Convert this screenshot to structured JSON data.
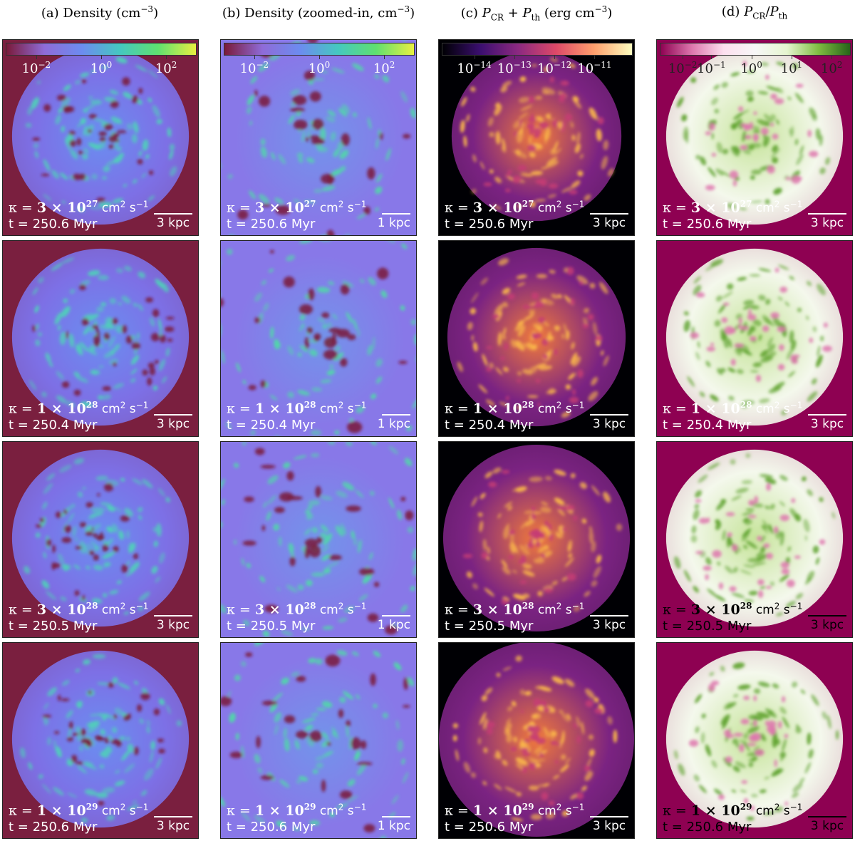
{
  "columns": [
    {
      "id": "a",
      "title_main": "(a) Density (cm",
      "title_sup": "−3",
      "title_end": ")"
    },
    {
      "id": "b",
      "title_main": "(b) Density (zoomed-in, cm",
      "title_sup": "−3",
      "title_end": ")"
    },
    {
      "id": "c",
      "title_pre": "(c) ",
      "title_p1": "P",
      "title_s1": "CR",
      "title_plus": " + ",
      "title_p2": "P",
      "title_s2": "th",
      "title_end": " (erg cm",
      "title_sup": "−3",
      "title_close": ")"
    },
    {
      "id": "d",
      "title_pre": "(d) ",
      "title_p1": "P",
      "title_s1": "CR",
      "title_slash": "/",
      "title_p2": "P",
      "title_s2": "th"
    }
  ],
  "colorbars": {
    "a": {
      "ticks": [
        {
          "base": "10",
          "exp": "−2"
        },
        {
          "base": "10",
          "exp": "0"
        },
        {
          "base": "10",
          "exp": "2"
        }
      ],
      "colors": [
        "#7a1a3a",
        "#8f6bd8",
        "#6c8cf0",
        "#45c8c0",
        "#5fe070",
        "#e8f040"
      ]
    },
    "b": {
      "ticks": [
        {
          "base": "10",
          "exp": "−2"
        },
        {
          "base": "10",
          "exp": "0"
        },
        {
          "base": "10",
          "exp": "2"
        }
      ],
      "colors": [
        "#7a1a3a",
        "#8f6bd8",
        "#6c8cf0",
        "#45c8c0",
        "#5fe070",
        "#e8f040"
      ]
    },
    "c": {
      "ticks": [
        {
          "base": "10",
          "exp": "−14"
        },
        {
          "base": "10",
          "exp": "−13"
        },
        {
          "base": "10",
          "exp": "−12"
        },
        {
          "base": "10",
          "exp": "−11"
        }
      ],
      "colors": [
        "#000004",
        "#3b0f70",
        "#8c2981",
        "#de4968",
        "#fe9f6d",
        "#fcfdbf"
      ]
    },
    "d": {
      "ticks": [
        {
          "base": "10",
          "exp": "−2"
        },
        {
          "base": "10",
          "exp": "−1"
        },
        {
          "base": "10",
          "exp": "0"
        },
        {
          "base": "10",
          "exp": "1"
        },
        {
          "base": "10",
          "exp": "2"
        }
      ],
      "colors": [
        "#8e0152",
        "#de77ae",
        "#fde0ef",
        "#f7f7f7",
        "#e6f5d0",
        "#7fbc41",
        "#276419"
      ]
    }
  },
  "rows": [
    {
      "kappa_mant": "3",
      "kappa_exp": "27",
      "time": "t = 250.6 Myr"
    },
    {
      "kappa_mant": "1",
      "kappa_exp": "28",
      "time": "t = 250.4 Myr"
    },
    {
      "kappa_mant": "3",
      "kappa_exp": "28",
      "time": "t = 250.5 Myr"
    },
    {
      "kappa_mant": "1",
      "kappa_exp": "29",
      "time": "t = 250.6 Myr"
    }
  ],
  "kappa": {
    "symbol": "κ = ",
    "times": " × ",
    "base": "10",
    "unit": "cm",
    "unit_sup1": "2",
    "unit_s": " s",
    "unit_sup2": "−1"
  },
  "scalebars": {
    "full": "3 kpc",
    "zoom": "1 kpc"
  },
  "panel_colors": {
    "a": {
      "bg": "#7a1f3f",
      "disk": "#7d70e6",
      "inner": "#6a8ef0",
      "hot": "#4fd1b8",
      "void": "#7a1a3a"
    },
    "b": {
      "bg": "#8a70e4",
      "disk": "#8878e8",
      "inner": "#64a6ec",
      "hot": "#50d8a8",
      "void": "#7a1a3a"
    },
    "c": {
      "bg": "#000004",
      "disk": "#7b2382",
      "inner": "#f07a3c",
      "hot": "#fbb84a",
      "void": "#c53c74"
    },
    "d": {
      "bg": "#8e0152",
      "disk": "#f4f8ec",
      "inner": "#c6e49a",
      "hot": "#5ea22e",
      "void": "#de77ae"
    }
  }
}
